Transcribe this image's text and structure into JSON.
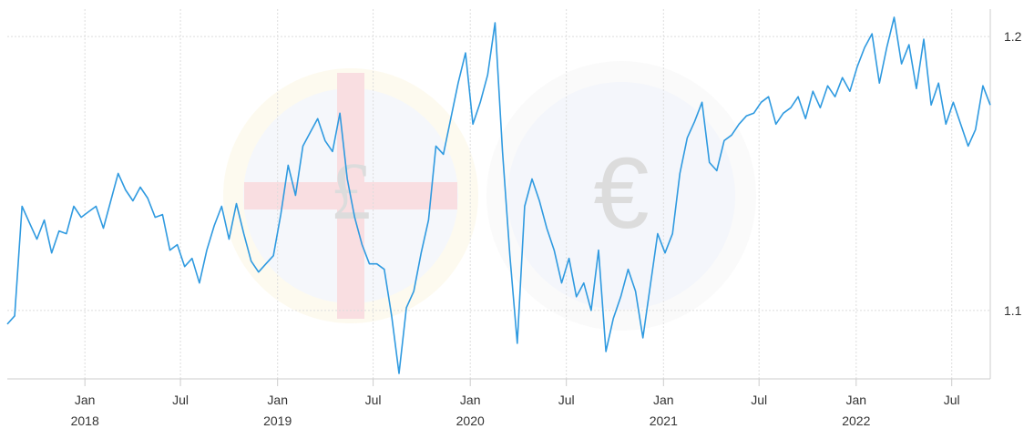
{
  "chart_data": {
    "type": "line",
    "title": "",
    "xlabel": "",
    "ylabel": "",
    "ylim": [
      1.075,
      1.21
    ],
    "x_range": [
      "2017-08-07",
      "2022-09-12"
    ],
    "yticks": [
      {
        "value": 1.1,
        "label": "1.1"
      },
      {
        "value": 1.2,
        "label": "1.2"
      }
    ],
    "xticks": [
      {
        "date": "2018-01-01",
        "month": "Jan",
        "year": "2018"
      },
      {
        "date": "2018-07-01",
        "month": "Jul",
        "year": ""
      },
      {
        "date": "2019-01-01",
        "month": "Jan",
        "year": "2019"
      },
      {
        "date": "2019-07-01",
        "month": "Jul",
        "year": ""
      },
      {
        "date": "2020-01-01",
        "month": "Jan",
        "year": "2020"
      },
      {
        "date": "2020-07-01",
        "month": "Jul",
        "year": ""
      },
      {
        "date": "2021-01-01",
        "month": "Jan",
        "year": "2021"
      },
      {
        "date": "2021-07-01",
        "month": "Jul",
        "year": ""
      },
      {
        "date": "2022-01-01",
        "month": "Jan",
        "year": "2022"
      },
      {
        "date": "2022-07-01",
        "month": "Jul",
        "year": ""
      }
    ],
    "grid": true,
    "line_color": "#2f9ae0",
    "series": [
      {
        "x": [
          "2017-08-07",
          "2017-08-21",
          "2017-09-04",
          "2017-09-18",
          "2017-10-02",
          "2017-10-16",
          "2017-10-30",
          "2017-11-13",
          "2017-11-27",
          "2017-12-11",
          "2017-12-25",
          "2018-01-08",
          "2018-01-22",
          "2018-02-05",
          "2018-02-19",
          "2018-03-05",
          "2018-03-19",
          "2018-04-02",
          "2018-04-16",
          "2018-04-30",
          "2018-05-14",
          "2018-05-28",
          "2018-06-11",
          "2018-06-25",
          "2018-07-09",
          "2018-07-23",
          "2018-08-06",
          "2018-08-20",
          "2018-09-03",
          "2018-09-17",
          "2018-10-01",
          "2018-10-15",
          "2018-10-29",
          "2018-11-12",
          "2018-11-26",
          "2018-12-10",
          "2018-12-24",
          "2019-01-07",
          "2019-01-21",
          "2019-02-04",
          "2019-02-18",
          "2019-03-04",
          "2019-03-18",
          "2019-04-01",
          "2019-04-15",
          "2019-04-29",
          "2019-05-13",
          "2019-05-27",
          "2019-06-10",
          "2019-06-24",
          "2019-07-08",
          "2019-07-22",
          "2019-08-05",
          "2019-08-19",
          "2019-09-02",
          "2019-09-16",
          "2019-09-30",
          "2019-10-14",
          "2019-10-28",
          "2019-11-11",
          "2019-11-25",
          "2019-12-09",
          "2019-12-23",
          "2020-01-06",
          "2020-01-20",
          "2020-02-03",
          "2020-02-17",
          "2020-03-02",
          "2020-03-16",
          "2020-03-30",
          "2020-04-13",
          "2020-04-27",
          "2020-05-11",
          "2020-05-25",
          "2020-06-08",
          "2020-06-22",
          "2020-07-06",
          "2020-07-20",
          "2020-08-03",
          "2020-08-17",
          "2020-08-31",
          "2020-09-14",
          "2020-09-28",
          "2020-10-12",
          "2020-10-26",
          "2020-11-09",
          "2020-11-23",
          "2020-12-07",
          "2020-12-21",
          "2021-01-04",
          "2021-01-18",
          "2021-02-01",
          "2021-02-15",
          "2021-03-01",
          "2021-03-15",
          "2021-03-29",
          "2021-04-12",
          "2021-04-26",
          "2021-05-10",
          "2021-05-24",
          "2021-06-07",
          "2021-06-21",
          "2021-07-05",
          "2021-07-19",
          "2021-08-02",
          "2021-08-16",
          "2021-08-30",
          "2021-09-13",
          "2021-09-27",
          "2021-10-11",
          "2021-10-25",
          "2021-11-08",
          "2021-11-22",
          "2021-12-06",
          "2021-12-20",
          "2022-01-03",
          "2022-01-17",
          "2022-01-31",
          "2022-02-14",
          "2022-02-28",
          "2022-03-14",
          "2022-03-28",
          "2022-04-11",
          "2022-04-25",
          "2022-05-09",
          "2022-05-23",
          "2022-06-06",
          "2022-06-20",
          "2022-07-04",
          "2022-07-18",
          "2022-08-01",
          "2022-08-15",
          "2022-08-29",
          "2022-09-12"
        ],
        "y": [
          1.095,
          1.098,
          1.138,
          1.132,
          1.126,
          1.133,
          1.121,
          1.129,
          1.128,
          1.138,
          1.134,
          1.136,
          1.138,
          1.13,
          1.14,
          1.15,
          1.144,
          1.14,
          1.145,
          1.141,
          1.134,
          1.135,
          1.122,
          1.124,
          1.116,
          1.119,
          1.11,
          1.122,
          1.131,
          1.138,
          1.126,
          1.139,
          1.128,
          1.118,
          1.114,
          1.117,
          1.12,
          1.135,
          1.153,
          1.142,
          1.16,
          1.165,
          1.17,
          1.162,
          1.158,
          1.172,
          1.148,
          1.134,
          1.124,
          1.117,
          1.117,
          1.115,
          1.098,
          1.077,
          1.101,
          1.107,
          1.121,
          1.133,
          1.16,
          1.157,
          1.17,
          1.183,
          1.194,
          1.168,
          1.176,
          1.186,
          1.205,
          1.158,
          1.12,
          1.088,
          1.138,
          1.148,
          1.14,
          1.13,
          1.122,
          1.11,
          1.119,
          1.105,
          1.11,
          1.1,
          1.122,
          1.085,
          1.097,
          1.105,
          1.115,
          1.107,
          1.09,
          1.109,
          1.128,
          1.121,
          1.128,
          1.15,
          1.163,
          1.169,
          1.176,
          1.154,
          1.151,
          1.162,
          1.164,
          1.168,
          1.171,
          1.172,
          1.176,
          1.178,
          1.168,
          1.172,
          1.174,
          1.178,
          1.17,
          1.18,
          1.174,
          1.182,
          1.178,
          1.185,
          1.18,
          1.189,
          1.196,
          1.201,
          1.183,
          1.196,
          1.207,
          1.19,
          1.197,
          1.181,
          1.199,
          1.175,
          1.183,
          1.168,
          1.176,
          1.168,
          1.16,
          1.166,
          1.182,
          1.175
        ],
        "note": ""
      }
    ]
  }
}
